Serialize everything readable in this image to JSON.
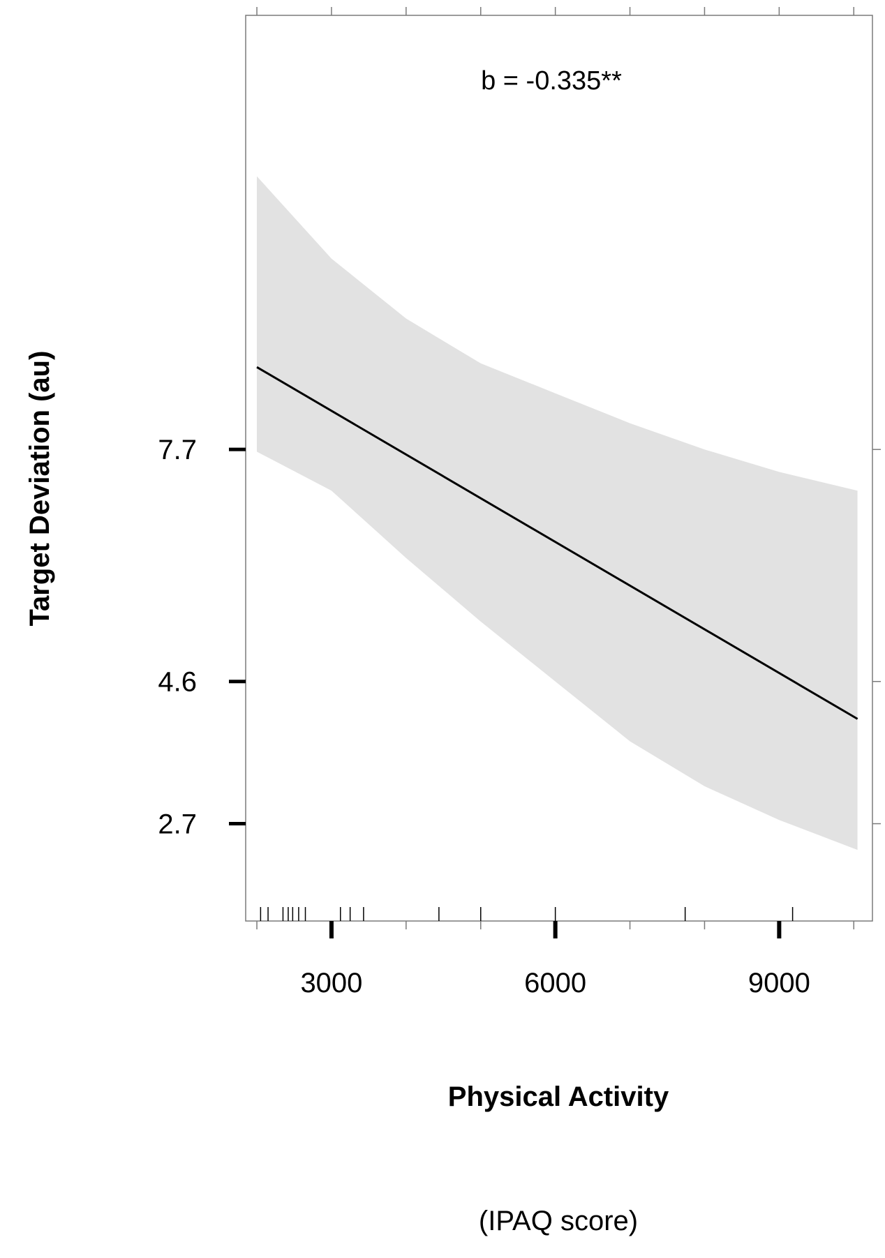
{
  "chart_data": {
    "type": "line",
    "annotation": "b = -0.335**",
    "xlabel": "Physical Activity",
    "xlabel_unit": "(IPAQ score)",
    "ylabel": "Target Deviation (au)",
    "x_ticks": [
      3000,
      6000,
      9000
    ],
    "x_tick_labels": [
      "3000",
      "6000",
      "9000"
    ],
    "y_ticks": [
      2.7,
      4.6,
      7.7
    ],
    "y_tick_labels": [
      "2.7",
      "4.6",
      "7.7"
    ],
    "ylim": [
      1.4,
      13.5
    ],
    "xlim": [
      1850,
      10250
    ],
    "grid": false,
    "fit_line": {
      "x": [
        2000,
        10050
      ],
      "y": [
        8.8,
        4.1
      ]
    },
    "confidence_band": {
      "x": [
        2000,
        3000,
        4000,
        5000,
        6000,
        7000,
        8000,
        9000,
        10050
      ],
      "lower": [
        7.67,
        7.15,
        6.25,
        5.4,
        4.6,
        3.8,
        3.2,
        2.75,
        2.35
      ],
      "upper": [
        11.35,
        10.25,
        9.45,
        8.85,
        8.45,
        8.05,
        7.7,
        7.4,
        7.15
      ]
    },
    "rug_x": [
      2050,
      2150,
      2350,
      2420,
      2480,
      2560,
      2650,
      3120,
      3250,
      3430,
      4440,
      5000,
      6000,
      7740,
      9180
    ]
  }
}
